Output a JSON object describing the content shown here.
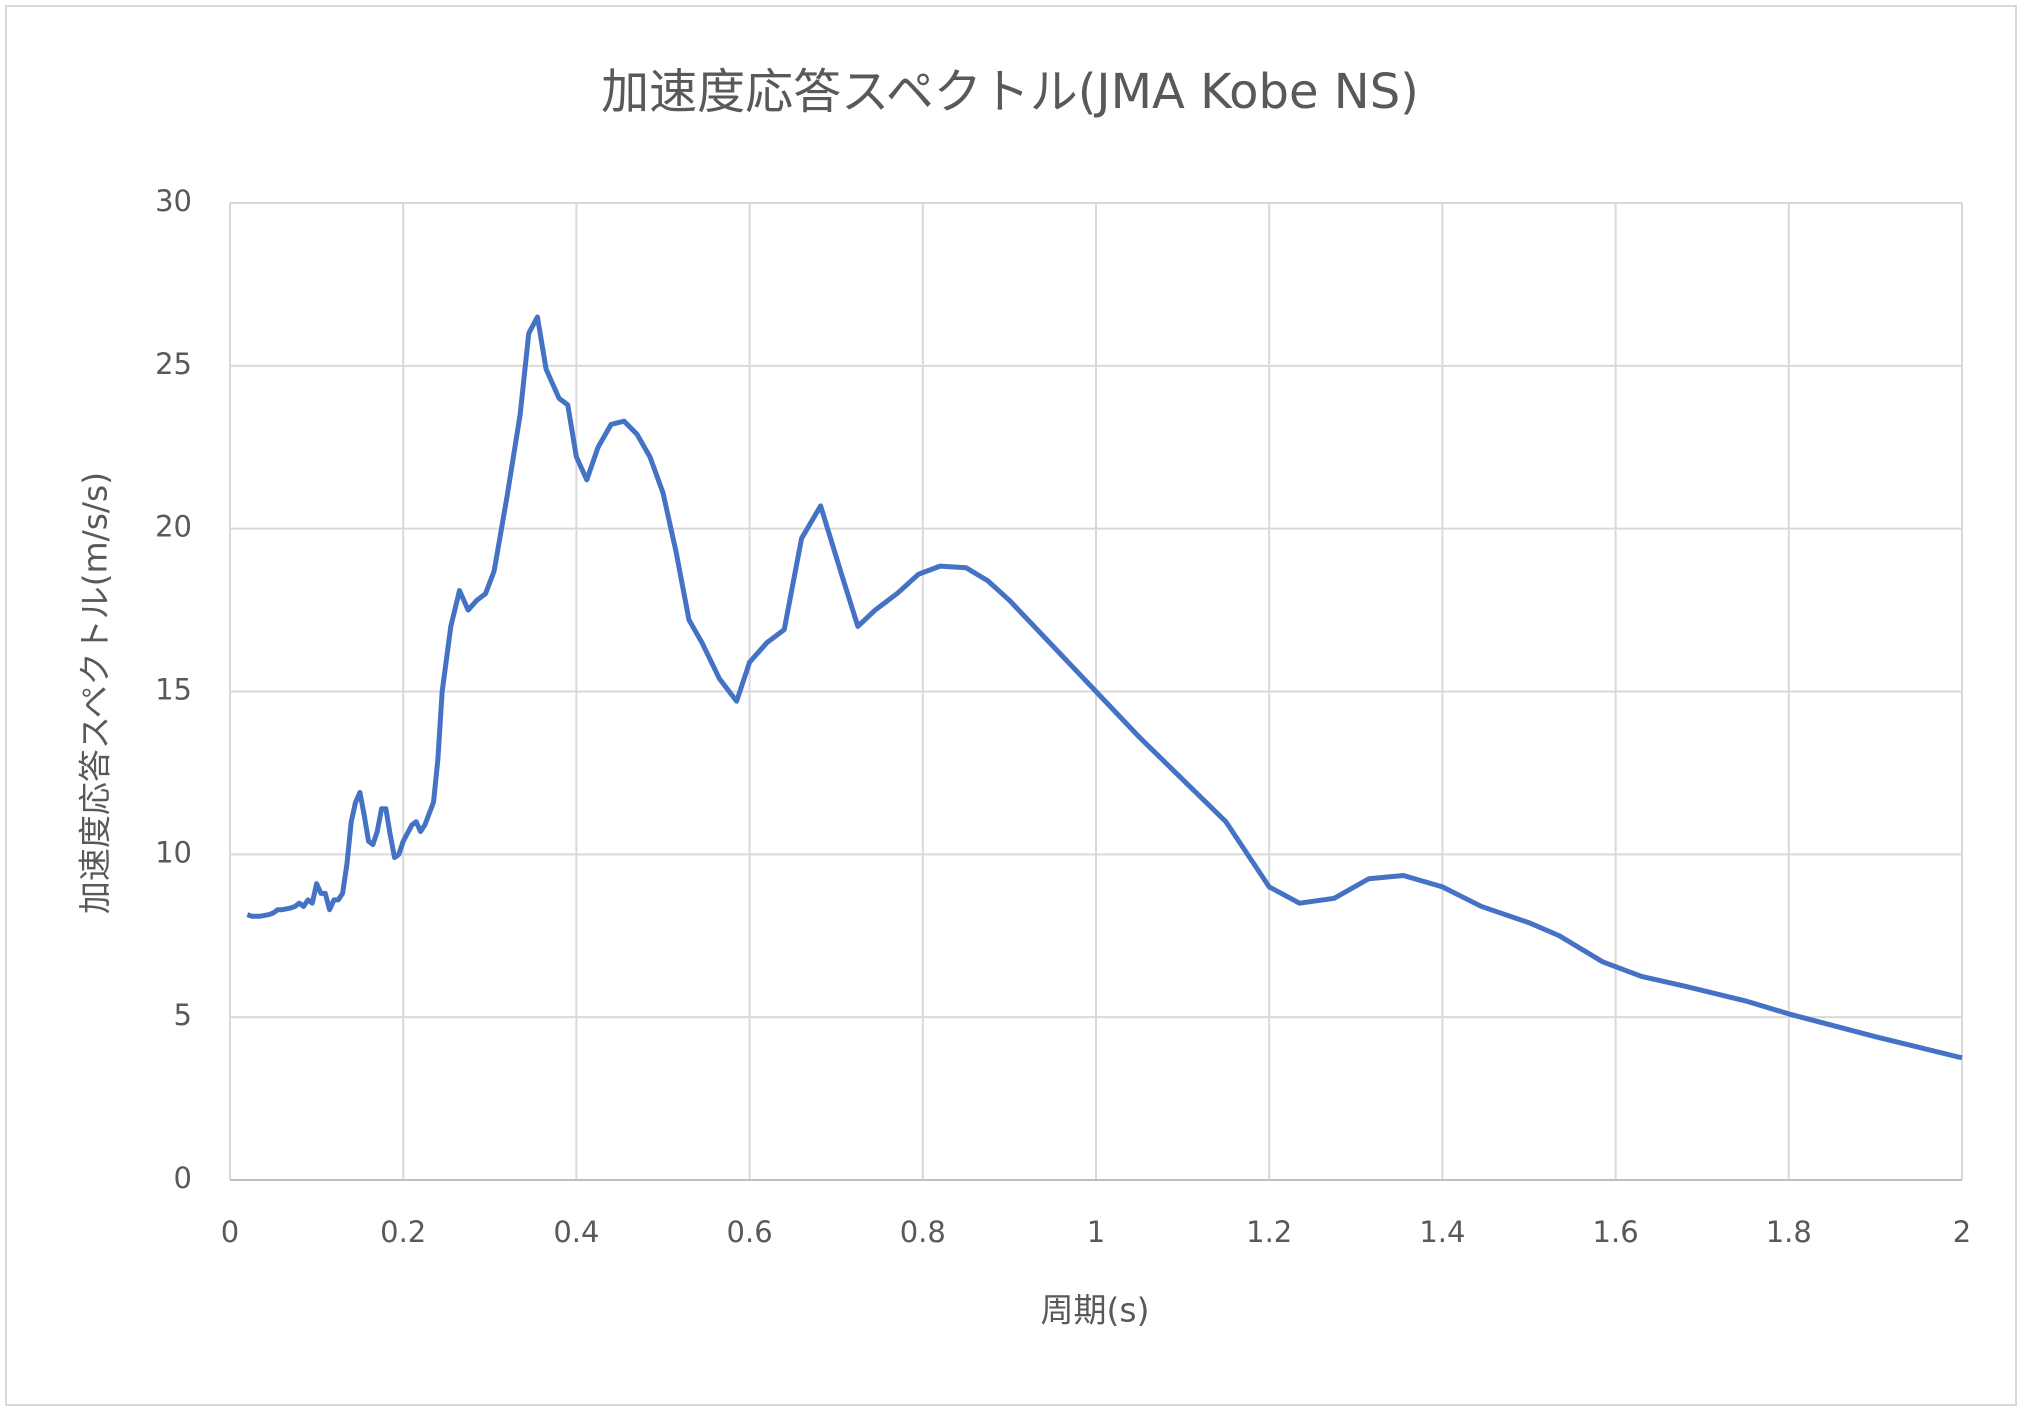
{
  "chart_data": {
    "type": "line",
    "title": "加速度応答スペクトル(JMA Kobe NS)",
    "x_label": "周期(s)",
    "y_label": "加速度応答スペクトル(m/s/s)",
    "color": "#4472c4",
    "grid": true,
    "xlim": [
      0,
      2
    ],
    "xticks": [
      0,
      0.2,
      0.4,
      0.6,
      0.8,
      1,
      1.2,
      1.4,
      1.6,
      1.8,
      2
    ],
    "ylim": [
      0,
      30
    ],
    "yticks": [
      0,
      5,
      10,
      15,
      20,
      25,
      30
    ],
    "x": [
      0.02,
      0.025,
      0.035,
      0.045,
      0.05,
      0.055,
      0.06,
      0.07,
      0.075,
      0.08,
      0.085,
      0.09,
      0.095,
      0.1,
      0.105,
      0.11,
      0.115,
      0.12,
      0.125,
      0.13,
      0.135,
      0.14,
      0.145,
      0.15,
      0.155,
      0.16,
      0.165,
      0.17,
      0.175,
      0.18,
      0.185,
      0.19,
      0.195,
      0.2,
      0.21,
      0.215,
      0.22,
      0.225,
      0.235,
      0.24,
      0.245,
      0.255,
      0.265,
      0.275,
      0.285,
      0.295,
      0.305,
      0.32,
      0.335,
      0.345,
      0.355,
      0.365,
      0.38,
      0.39,
      0.4,
      0.412,
      0.425,
      0.44,
      0.455,
      0.47,
      0.485,
      0.5,
      0.515,
      0.53,
      0.545,
      0.565,
      0.585,
      0.6,
      0.62,
      0.64,
      0.66,
      0.682,
      0.705,
      0.725,
      0.745,
      0.77,
      0.795,
      0.82,
      0.85,
      0.875,
      0.9,
      0.95,
      1.0,
      1.05,
      1.1,
      1.15,
      1.2,
      1.235,
      1.275,
      1.315,
      1.355,
      1.4,
      1.445,
      1.5,
      1.535,
      1.585,
      1.63,
      1.68,
      1.75,
      1.8,
      1.9,
      2.0
    ],
    "values": [
      8.15,
      8.1,
      8.1,
      8.15,
      8.2,
      8.3,
      8.3,
      8.35,
      8.4,
      8.5,
      8.4,
      8.6,
      8.5,
      9.1,
      8.8,
      8.8,
      8.3,
      8.6,
      8.6,
      8.8,
      9.7,
      11.0,
      11.6,
      11.9,
      11.2,
      10.4,
      10.3,
      10.7,
      11.4,
      11.4,
      10.6,
      9.9,
      10.0,
      10.4,
      10.9,
      11.0,
      10.7,
      10.9,
      11.6,
      12.9,
      15.0,
      17.0,
      18.1,
      17.5,
      17.8,
      18.0,
      18.7,
      21.0,
      23.5,
      26.0,
      26.5,
      24.9,
      24.0,
      23.8,
      22.2,
      21.5,
      22.5,
      23.2,
      23.3,
      22.9,
      22.2,
      21.1,
      19.3,
      17.2,
      16.5,
      15.4,
      14.7,
      15.9,
      16.5,
      16.9,
      19.7,
      20.7,
      18.7,
      17.0,
      17.5,
      18.0,
      18.6,
      18.85,
      18.8,
      18.4,
      17.8,
      16.4,
      15.0,
      13.6,
      12.3,
      11.0,
      9.0,
      8.5,
      8.65,
      9.25,
      9.35,
      9.0,
      8.4,
      7.9,
      7.5,
      6.7,
      6.25,
      5.95,
      5.5,
      5.1,
      4.4,
      3.75
    ]
  }
}
